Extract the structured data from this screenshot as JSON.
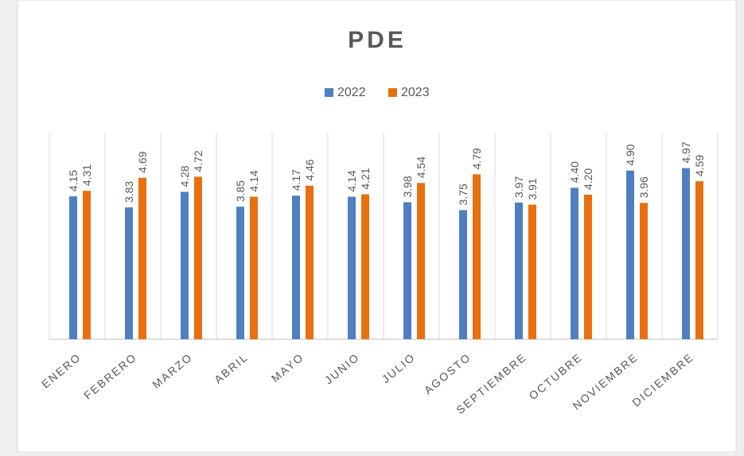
{
  "chart_data": {
    "type": "bar",
    "title": "PDE",
    "categories": [
      "ENERO",
      "FEBRERO",
      "MARZO",
      "ABRIL",
      "MAYO",
      "JUNIO",
      "JULIO",
      "AGOSTO",
      "SEPTIEMBRE",
      "OCTUBRE",
      "NOVIEMBRE",
      "DICIEMBRE"
    ],
    "series": [
      {
        "name": "2022",
        "color": "#4f7fc0",
        "values": [
          4.15,
          3.83,
          4.28,
          3.85,
          4.17,
          4.14,
          3.98,
          3.75,
          3.97,
          4.4,
          4.9,
          4.97
        ],
        "value_labels": [
          "4.15",
          "3.83",
          "4.28",
          "3.85",
          "4.17",
          "4.14",
          "3.98",
          "3.75",
          "3.97",
          "4.40",
          "4.90",
          "4.97"
        ]
      },
      {
        "name": "2023",
        "color": "#e8700f",
        "values": [
          4.31,
          4.69,
          4.72,
          4.14,
          4.46,
          4.21,
          4.54,
          4.79,
          3.91,
          4.2,
          3.96,
          4.59
        ],
        "value_labels": [
          "4.31",
          "4.69",
          "4.72",
          "4.14",
          "4.46",
          "4.21",
          "4.54",
          "4.79",
          "3.91",
          "4.20",
          "3.96",
          "4.59"
        ]
      }
    ],
    "ylim": [
      0,
      6
    ],
    "grid": true,
    "legend": "top"
  }
}
